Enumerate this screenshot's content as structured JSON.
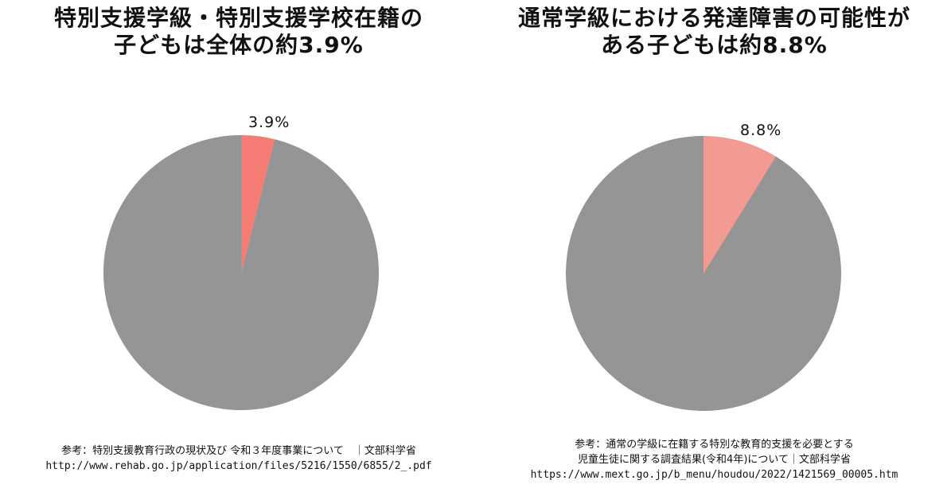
{
  "colors": {
    "remainder": "#959595",
    "left_highlight": "#f47c74",
    "right_highlight": "#f19b93"
  },
  "chart_data": [
    {
      "type": "pie",
      "title_lines": [
        "特別支援学級・特別支援学校在籍の",
        "子どもは全体の約3.9%"
      ],
      "slices": [
        {
          "value": 3.9,
          "label": "3.9%",
          "color": "#f47c74"
        },
        {
          "value": 96.1,
          "label": "",
          "color": "#959595"
        }
      ],
      "start": "12 o'clock",
      "direction": "clockwise",
      "source_lines": [
        "参考：特別支援教育行政の現状及び 令和３年度事業について　｜文部科学省",
        "http://www.rehab.go.jp/application/files/5216/1550/6855/2_.pdf"
      ]
    },
    {
      "type": "pie",
      "title_lines": [
        "通常学級における発達障害の可能性が",
        "ある子どもは約8.8%"
      ],
      "slices": [
        {
          "value": 8.8,
          "label": "8.8%",
          "color": "#f19b93"
        },
        {
          "value": 91.2,
          "label": "",
          "color": "#959595"
        }
      ],
      "start": "12 o'clock",
      "direction": "clockwise",
      "source_lines": [
        "参考：通常の学級に在籍する特別な教育的支援を必要とする",
        "児童生徒に関する調査結果(令和4年)について｜文部科学省",
        "https://www.mext.go.jp/b_menu/houdou/2022/1421569_00005.htm"
      ]
    }
  ]
}
